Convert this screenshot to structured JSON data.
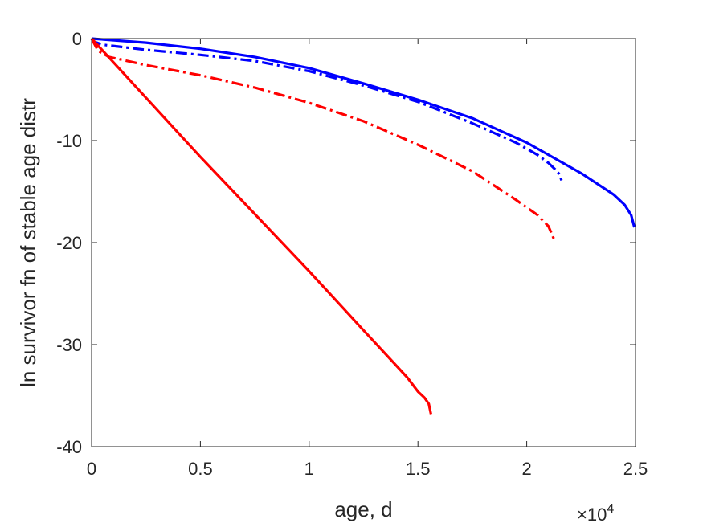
{
  "chart_data": {
    "type": "line",
    "title": "",
    "xlabel": "age, d",
    "ylabel": "ln survivor fn of stable age distr",
    "x_multiplier_label": {
      "base": "×10",
      "exponent": "4"
    },
    "xlim": [
      0,
      25000
    ],
    "ylim": [
      -40,
      0
    ],
    "xticks": [
      0,
      5000,
      10000,
      15000,
      20000,
      25000
    ],
    "xtick_labels": [
      "0",
      "0.5",
      "1",
      "1.5",
      "2",
      "2.5"
    ],
    "yticks": [
      0,
      -10,
      -20,
      -30,
      -40
    ],
    "ytick_labels": [
      "0",
      "-10",
      "-20",
      "-30",
      "-40"
    ],
    "grid": false,
    "box": true,
    "series": [
      {
        "color": "#0000ff",
        "style": "solid",
        "x": [
          0,
          2500,
          5000,
          7500,
          10000,
          12500,
          15000,
          17500,
          20000,
          22500,
          24000,
          24500,
          24800,
          24950
        ],
        "y": [
          0,
          -0.4,
          -1.0,
          -1.8,
          -2.9,
          -4.4,
          -6.0,
          -7.8,
          -10.2,
          -13.2,
          -15.3,
          -16.3,
          -17.3,
          -18.5
        ]
      },
      {
        "color": "#0000ff",
        "style": "dashdot",
        "x": [
          0,
          100,
          500,
          2500,
          5000,
          7500,
          10000,
          12500,
          15000,
          17500,
          19500,
          20500,
          21000,
          21300,
          21500,
          21600
        ],
        "y": [
          0,
          -0.3,
          -0.6,
          -1.1,
          -1.6,
          -2.2,
          -3.2,
          -4.6,
          -6.2,
          -8.3,
          -10.2,
          -11.4,
          -12.2,
          -12.8,
          -13.3,
          -13.9
        ]
      },
      {
        "color": "#ff0000",
        "style": "solid",
        "x": [
          0,
          2500,
          5000,
          7500,
          10000,
          12500,
          14500,
          15000,
          15300,
          15500,
          15600
        ],
        "y": [
          0,
          -5.8,
          -11.6,
          -17.2,
          -22.8,
          -28.6,
          -33.2,
          -34.6,
          -35.2,
          -35.8,
          -36.8
        ]
      },
      {
        "color": "#ff0000",
        "style": "dashdot",
        "x": [
          0,
          300,
          800,
          2500,
          5000,
          7500,
          10000,
          12500,
          15000,
          17500,
          19500,
          20500,
          21000,
          21300
        ],
        "y": [
          0,
          -1.2,
          -1.8,
          -2.6,
          -3.6,
          -4.8,
          -6.3,
          -8.1,
          -10.4,
          -13.0,
          -15.8,
          -17.3,
          -18.4,
          -19.9
        ]
      }
    ]
  }
}
